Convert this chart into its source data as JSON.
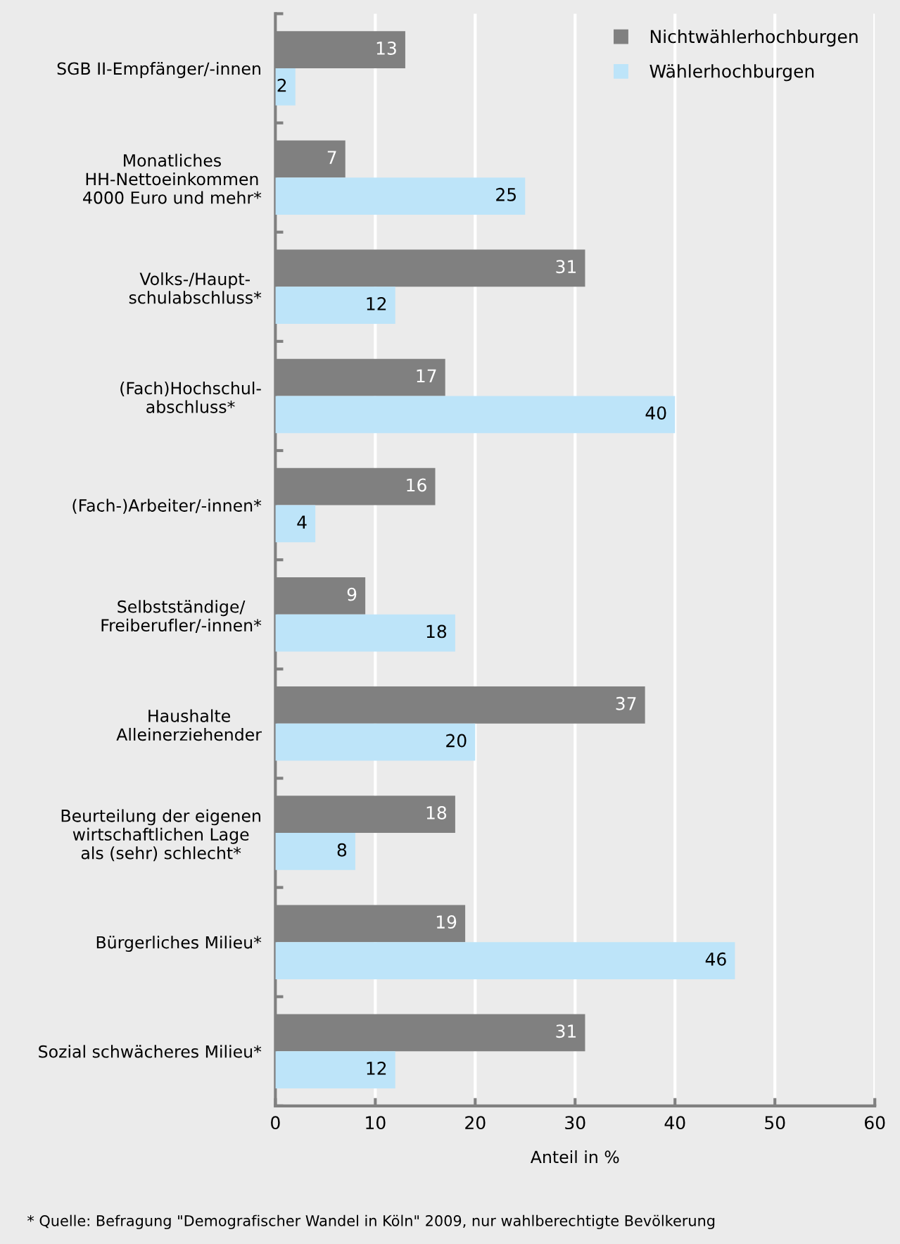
{
  "chart_data": {
    "type": "bar",
    "orientation": "horizontal",
    "xlabel": "Anteil in %",
    "categories": [
      "SGB II-Empfänger/-innen",
      "Monatliches\nHH-Nettoeinkommen\n4000 Euro und mehr*",
      "Volks-/Haupt-\nschulabschluss*",
      "(Fach)Hochschul-\nabschluss*",
      "(Fach-)Arbeiter/-innen*",
      "Selbstständige/\nFreiberufler/-innen*",
      "Haushalte\nAlleinerziehender",
      "Beurteilung der eigenen\nwirtschaftlichen Lage\nals (sehr) schlecht*",
      "Bürgerliches Milieu*",
      "Sozial schwächeres Milieu*"
    ],
    "series": [
      {
        "name": "Nichtwählerhochburgen",
        "color": "#808080",
        "values": [
          13,
          7,
          31,
          17,
          16,
          9,
          37,
          18,
          19,
          31
        ]
      },
      {
        "name": "Wählerhochburgen",
        "color": "#bde4f9",
        "values": [
          2,
          25,
          12,
          40,
          4,
          18,
          20,
          8,
          46,
          12
        ]
      }
    ],
    "xlim": [
      0,
      60
    ],
    "xticks": [
      0,
      10,
      20,
      30,
      40,
      50,
      60
    ],
    "grid": "x",
    "legend": "top right",
    "data_labels": true,
    "annotations": [
      "* Quelle: Befragung \"Demografischer Wandel in Köln\" 2009, nur wahlberechtigte Bevölkerung"
    ]
  }
}
